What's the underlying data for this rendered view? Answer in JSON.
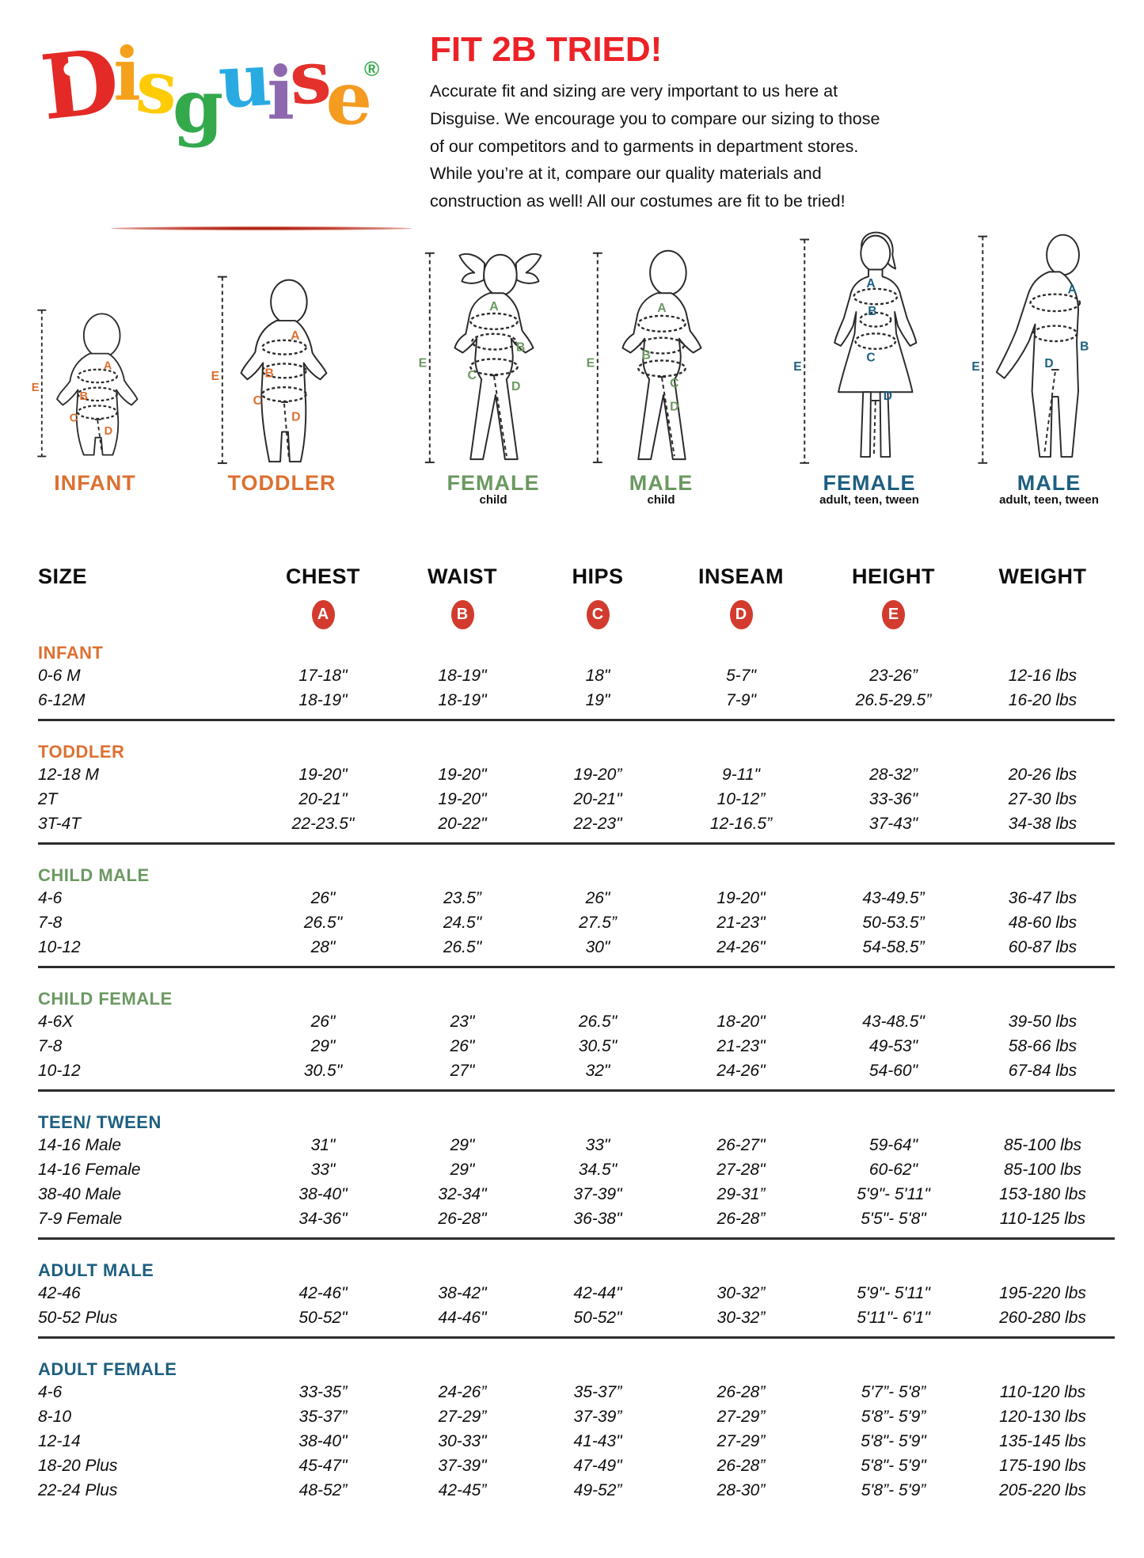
{
  "logo": {
    "word": "Disguise",
    "letters": [
      {
        "ch": "D",
        "color": "#e42a26"
      },
      {
        "ch": "i",
        "color": "#f5a11c"
      },
      {
        "ch": "s",
        "color": "#fecb05"
      },
      {
        "ch": "g",
        "color": "#33a94c"
      },
      {
        "ch": "u",
        "color": "#29abe2"
      },
      {
        "ch": "i",
        "color": "#8e68ae"
      },
      {
        "ch": "s",
        "color": "#e4312b"
      },
      {
        "ch": "e",
        "color": "#f49b20"
      }
    ],
    "registered": "®",
    "registered_color": "#33a94c"
  },
  "header": {
    "title": "FIT 2B TRIED!",
    "title_color": "#ec2227",
    "body": "Accurate fit and sizing are very important to us here at Disguise. We encourage you to compare our sizing to those of our competitors and to garments in department stores. While you’re at it, compare our quality materials and construction as well! All our costumes are fit to be tried!"
  },
  "figures": [
    {
      "label": "INFANT",
      "sublabel": "",
      "color": "#dd7031"
    },
    {
      "label": "TODDLER",
      "sublabel": "",
      "color": "#dd7031"
    },
    {
      "label": "FEMALE",
      "sublabel": "child",
      "color": "#6b9961"
    },
    {
      "label": "MALE",
      "sublabel": "child",
      "color": "#6b9961"
    },
    {
      "label": "FEMALE",
      "sublabel": "adult, teen, tween",
      "color": "#1d5f80"
    },
    {
      "label": "MALE",
      "sublabel": "adult, teen, tween",
      "color": "#1d5f80"
    }
  ],
  "measure_letters": [
    "A",
    "B",
    "C",
    "D",
    "E"
  ],
  "table": {
    "columns": [
      "SIZE",
      "CHEST",
      "WAIST",
      "HIPS",
      "INSEAM",
      "HEIGHT",
      "WEIGHT"
    ],
    "badges": [
      "A",
      "B",
      "C",
      "D",
      "E"
    ],
    "badge_color": "#d23b2e",
    "sections": [
      {
        "name": "INFANT",
        "color": "#dd7031",
        "rows": [
          {
            "size": "0-6 M",
            "chest": "17-18\"",
            "waist": "18-19\"",
            "hips": "18\"",
            "inseam": "5-7\"",
            "height": "23-26”",
            "weight": "12-16 lbs"
          },
          {
            "size": "6-12M",
            "chest": "18-19\"",
            "waist": "18-19\"",
            "hips": "19\"",
            "inseam": "7-9\"",
            "height": "26.5-29.5”",
            "weight": "16-20 lbs"
          }
        ]
      },
      {
        "name": "TODDLER",
        "color": "#dd7031",
        "rows": [
          {
            "size": "12-18 M",
            "chest": "19-20\"",
            "waist": "19-20\"",
            "hips": "19-20”",
            "inseam": "9-11\"",
            "height": "28-32”",
            "weight": "20-26 lbs"
          },
          {
            "size": "2T",
            "chest": "20-21\"",
            "waist": "19-20\"",
            "hips": "20-21\"",
            "inseam": "10-12”",
            "height": "33-36\"",
            "weight": "27-30 lbs"
          },
          {
            "size": "3T-4T",
            "chest": "22-23.5\"",
            "waist": "20-22\"",
            "hips": "22-23\"",
            "inseam": "12-16.5”",
            "height": "37-43\"",
            "weight": "34-38 lbs"
          }
        ]
      },
      {
        "name": "CHILD MALE",
        "color": "#6b9961",
        "rows": [
          {
            "size": "4-6",
            "chest": "26\"",
            "waist": "23.5”",
            "hips": "26\"",
            "inseam": "19-20\"",
            "height": "43-49.5”",
            "weight": "36-47 lbs"
          },
          {
            "size": "7-8",
            "chest": "26.5\"",
            "waist": "24.5\"",
            "hips": "27.5”",
            "inseam": "21-23\"",
            "height": "50-53.5”",
            "weight": "48-60 lbs"
          },
          {
            "size": "10-12",
            "chest": "28\"",
            "waist": "26.5\"",
            "hips": "30\"",
            "inseam": "24-26\"",
            "height": "54-58.5”",
            "weight": "60-87 lbs"
          }
        ]
      },
      {
        "name": "CHILD FEMALE",
        "color": "#6b9961",
        "rows": [
          {
            "size": "4-6X",
            "chest": "26\"",
            "waist": "23\"",
            "hips": "26.5\"",
            "inseam": "18-20\"",
            "height": "43-48.5\"",
            "weight": "39-50 lbs"
          },
          {
            "size": "7-8",
            "chest": "29\"",
            "waist": "26\"",
            "hips": "30.5\"",
            "inseam": "21-23\"",
            "height": "49-53\"",
            "weight": "58-66 lbs"
          },
          {
            "size": "10-12",
            "chest": "30.5\"",
            "waist": "27\"",
            "hips": "32\"",
            "inseam": "24-26\"",
            "height": "54-60\"",
            "weight": "67-84 lbs"
          }
        ]
      },
      {
        "name": "TEEN/ TWEEN",
        "color": "#1d5f80",
        "rows": [
          {
            "size": "14-16 Male",
            "chest": "31\"",
            "waist": "29\"",
            "hips": "33\"",
            "inseam": "26-27\"",
            "height": "59-64\"",
            "weight": "85-100 lbs"
          },
          {
            "size": "14-16 Female",
            "chest": "33\"",
            "waist": "29\"",
            "hips": "34.5\"",
            "inseam": "27-28\"",
            "height": "60-62\"",
            "weight": "85-100 lbs"
          },
          {
            "size": "38-40 Male",
            "chest": "38-40\"",
            "waist": "32-34\"",
            "hips": "37-39\"",
            "inseam": "29-31”",
            "height": "5'9\"- 5'11\"",
            "weight": "153-180 lbs"
          },
          {
            "size": "7-9 Female",
            "chest": "34-36\"",
            "waist": "26-28\"",
            "hips": "36-38\"",
            "inseam": "26-28”",
            "height": "5'5\"- 5'8\"",
            "weight": "110-125 lbs"
          }
        ]
      },
      {
        "name": "ADULT MALE",
        "color": "#1d5f80",
        "rows": [
          {
            "size": "42-46",
            "chest": "42-46\"",
            "waist": "38-42\"",
            "hips": "42-44\"",
            "inseam": "30-32”",
            "height": "5'9\"- 5'11\"",
            "weight": "195-220 lbs"
          },
          {
            "size": "50-52 Plus",
            "chest": "50-52\"",
            "waist": "44-46\"",
            "hips": "50-52\"",
            "inseam": "30-32”",
            "height": "5'11\"- 6'1\"",
            "weight": "260-280 lbs"
          }
        ]
      },
      {
        "name": "ADULT FEMALE",
        "color": "#1d5f80",
        "rows": [
          {
            "size": "4-6",
            "chest": "33-35”",
            "waist": "24-26”",
            "hips": "35-37”",
            "inseam": "26-28”",
            "height": "5'7”- 5'8”",
            "weight": "110-120 lbs"
          },
          {
            "size": "8-10",
            "chest": "35-37”",
            "waist": "27-29”",
            "hips": "37-39”",
            "inseam": "27-29”",
            "height": "5'8”- 5'9”",
            "weight": "120-130 lbs"
          },
          {
            "size": "12-14",
            "chest": "38-40\"",
            "waist": "30-33\"",
            "hips": "41-43\"",
            "inseam": "27-29”",
            "height": "5'8\"- 5'9\"",
            "weight": "135-145 lbs"
          },
          {
            "size": "18-20 Plus",
            "chest": "45-47\"",
            "waist": "37-39\"",
            "hips": "47-49\"",
            "inseam": "26-28”",
            "height": "5'8\"- 5'9\"",
            "weight": "175-190 lbs"
          },
          {
            "size": "22-24 Plus",
            "chest": "48-52”",
            "waist": "42-45”",
            "hips": "49-52”",
            "inseam": "28-30”",
            "height": "5'8”- 5'9”",
            "weight": "205-220 lbs"
          }
        ]
      }
    ]
  }
}
